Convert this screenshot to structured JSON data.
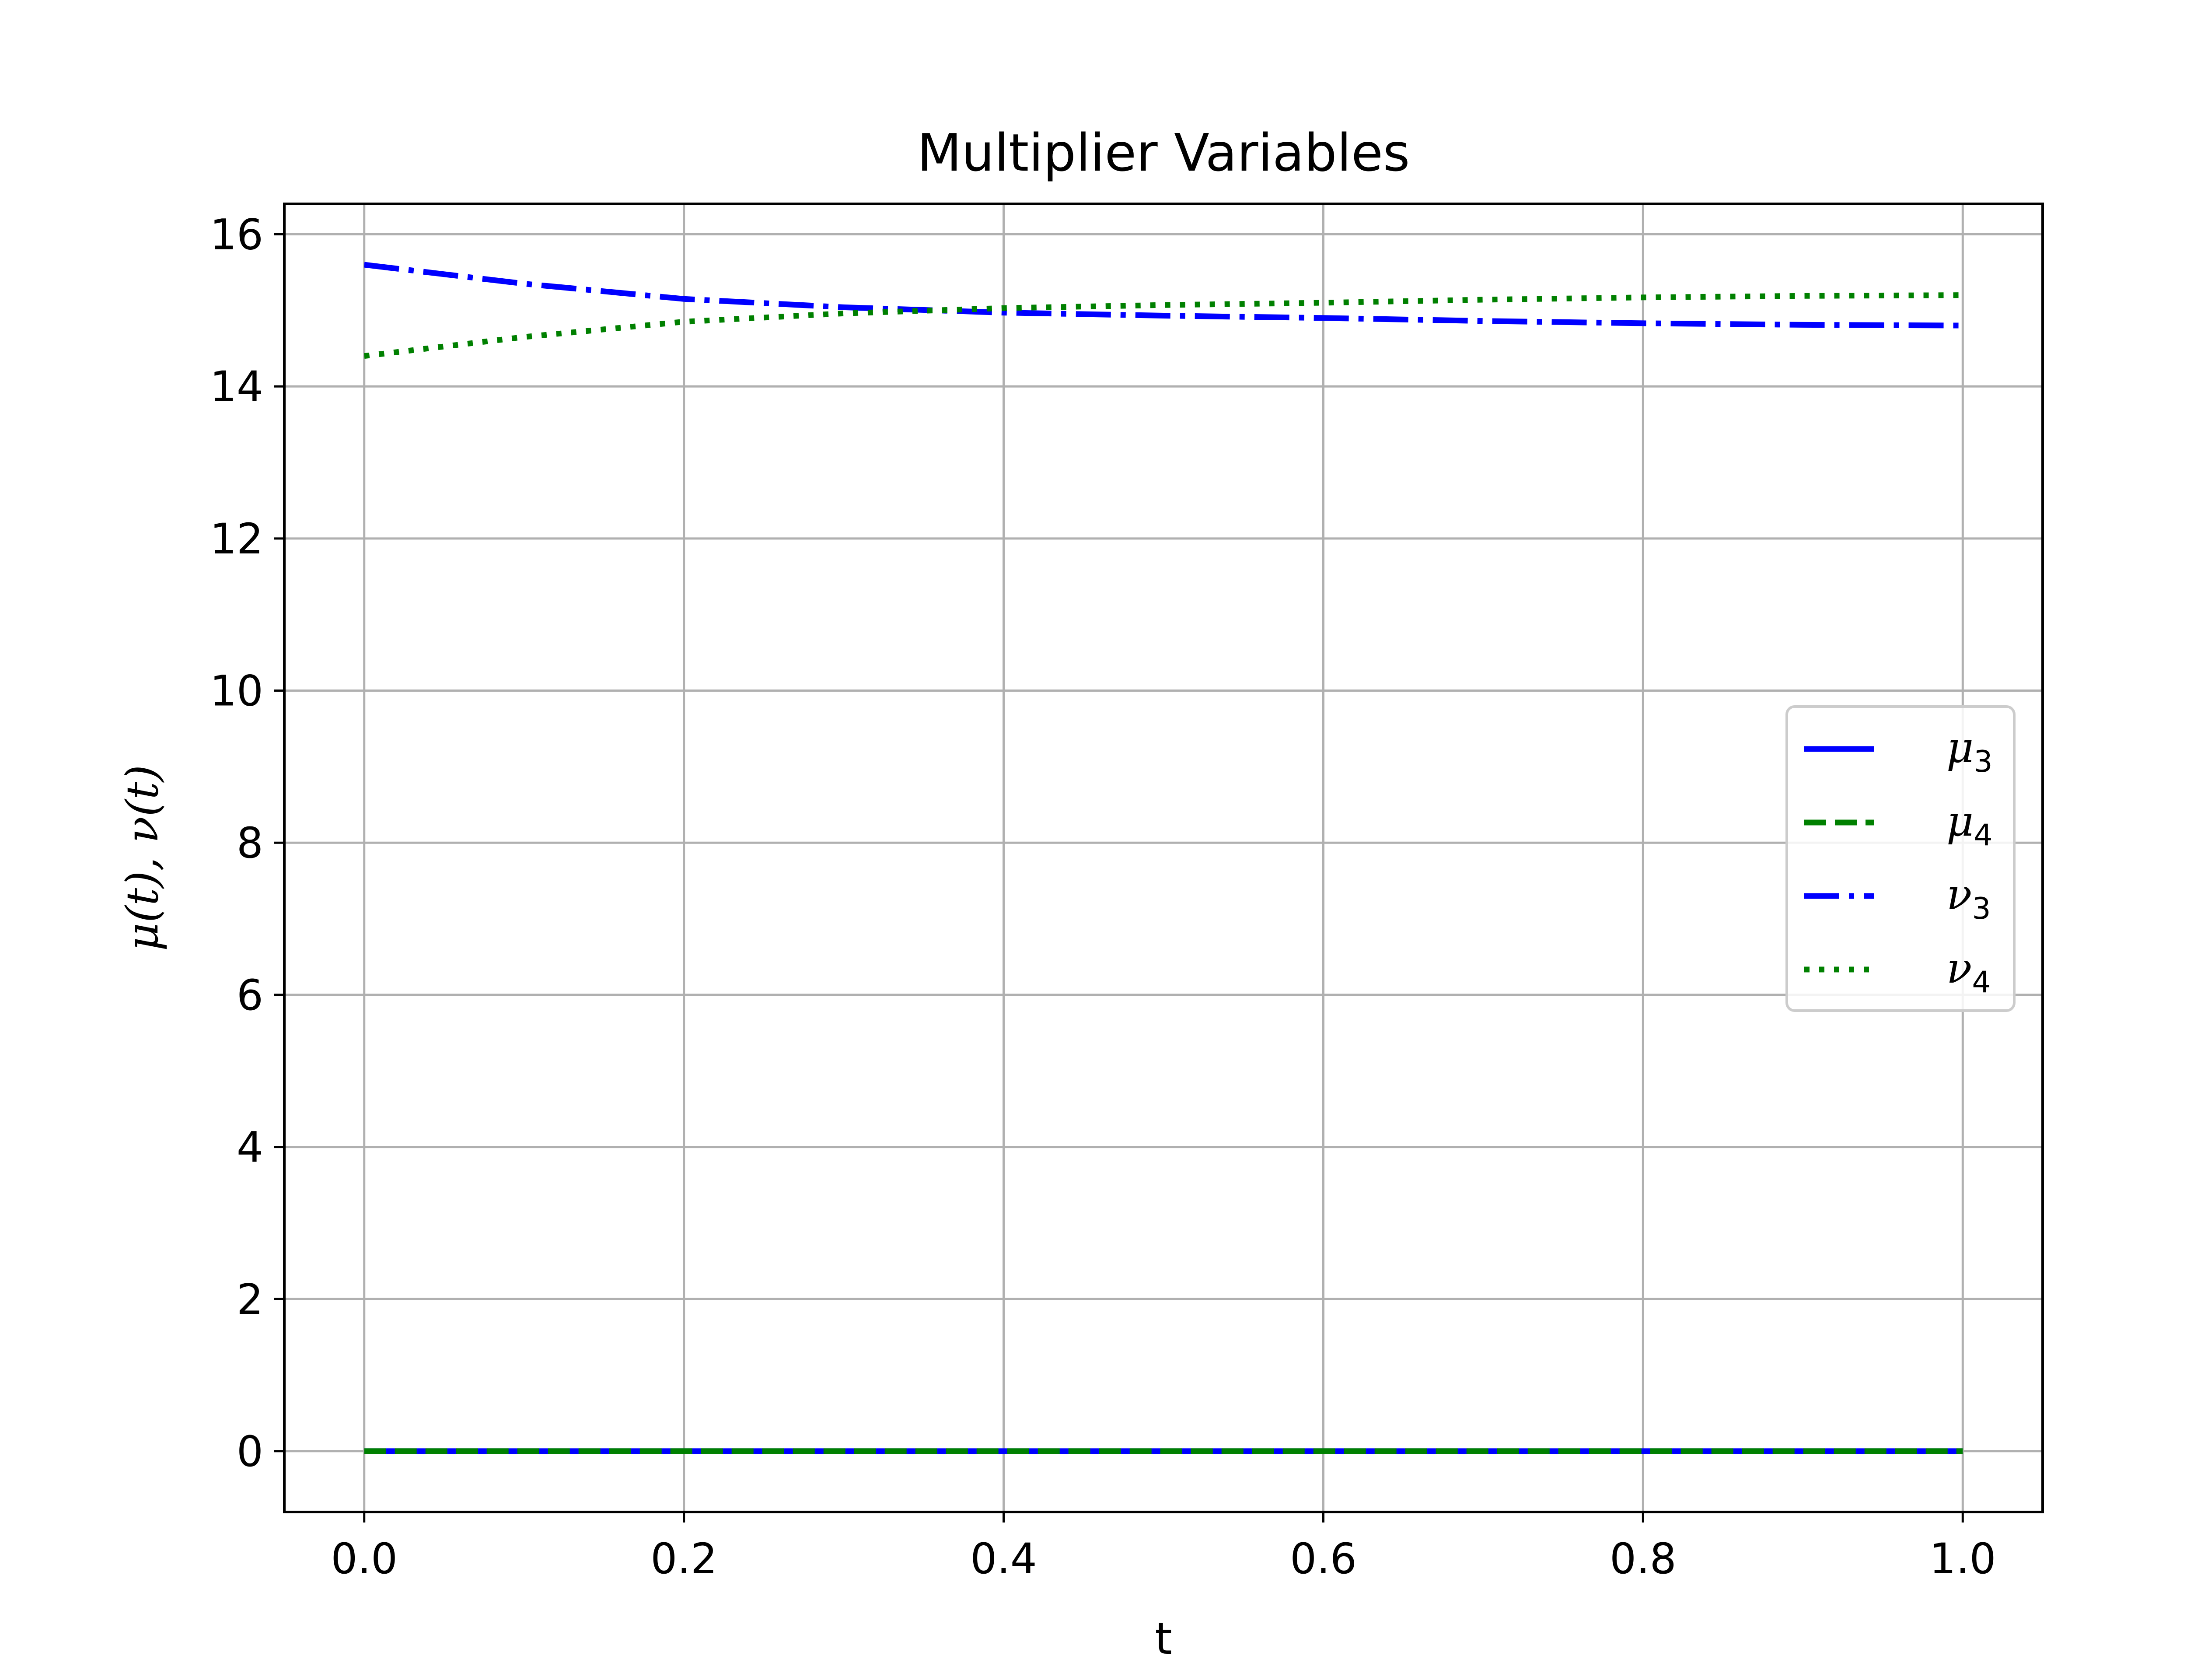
{
  "chart_data": {
    "type": "line",
    "title": "Multiplier Variables",
    "xlabel": "t",
    "ylabel": "μ(t), ν(t)",
    "xlim": [
      -0.05,
      1.05
    ],
    "ylim": [
      -0.8,
      16.4
    ],
    "xticks": [
      0.0,
      0.2,
      0.4,
      0.6,
      0.8,
      1.0
    ],
    "xtick_labels": [
      "0.0",
      "0.2",
      "0.4",
      "0.6",
      "0.8",
      "1.0"
    ],
    "yticks": [
      0,
      2,
      4,
      6,
      8,
      10,
      12,
      14,
      16
    ],
    "ytick_labels": [
      "0",
      "2",
      "4",
      "6",
      "8",
      "10",
      "12",
      "14",
      "16"
    ],
    "grid": true,
    "legend_position": "center-right",
    "series": [
      {
        "name": "μ3",
        "symbol": "μ",
        "subscript": "3",
        "color": "#0000ff",
        "style": "solid",
        "x": [
          0.0,
          0.1,
          0.2,
          0.3,
          0.4,
          0.5,
          0.6,
          0.7,
          0.8,
          0.9,
          1.0
        ],
        "y": [
          0,
          0,
          0,
          0,
          0,
          0,
          0,
          0,
          0,
          0,
          0
        ]
      },
      {
        "name": "μ4",
        "symbol": "μ",
        "subscript": "4",
        "color": "#008000",
        "style": "dashed",
        "x": [
          0.0,
          0.1,
          0.2,
          0.3,
          0.4,
          0.5,
          0.6,
          0.7,
          0.8,
          0.9,
          1.0
        ],
        "y": [
          0,
          0,
          0,
          0,
          0,
          0,
          0,
          0,
          0,
          0,
          0
        ]
      },
      {
        "name": "ν3",
        "symbol": "ν",
        "subscript": "3",
        "color": "#0000ff",
        "style": "dashdot",
        "x": [
          0.0,
          0.1,
          0.2,
          0.3,
          0.4,
          0.5,
          0.6,
          0.7,
          0.8,
          0.9,
          1.0
        ],
        "y": [
          15.6,
          15.35,
          15.15,
          15.04,
          14.97,
          14.93,
          14.9,
          14.86,
          14.83,
          14.81,
          14.8
        ]
      },
      {
        "name": "ν4",
        "symbol": "ν",
        "subscript": "4",
        "color": "#008000",
        "style": "dotted",
        "x": [
          0.0,
          0.1,
          0.2,
          0.3,
          0.4,
          0.5,
          0.6,
          0.7,
          0.8,
          0.9,
          1.0
        ],
        "y": [
          14.4,
          14.65,
          14.85,
          14.96,
          15.03,
          15.07,
          15.1,
          15.14,
          15.17,
          15.19,
          15.2
        ]
      }
    ]
  }
}
